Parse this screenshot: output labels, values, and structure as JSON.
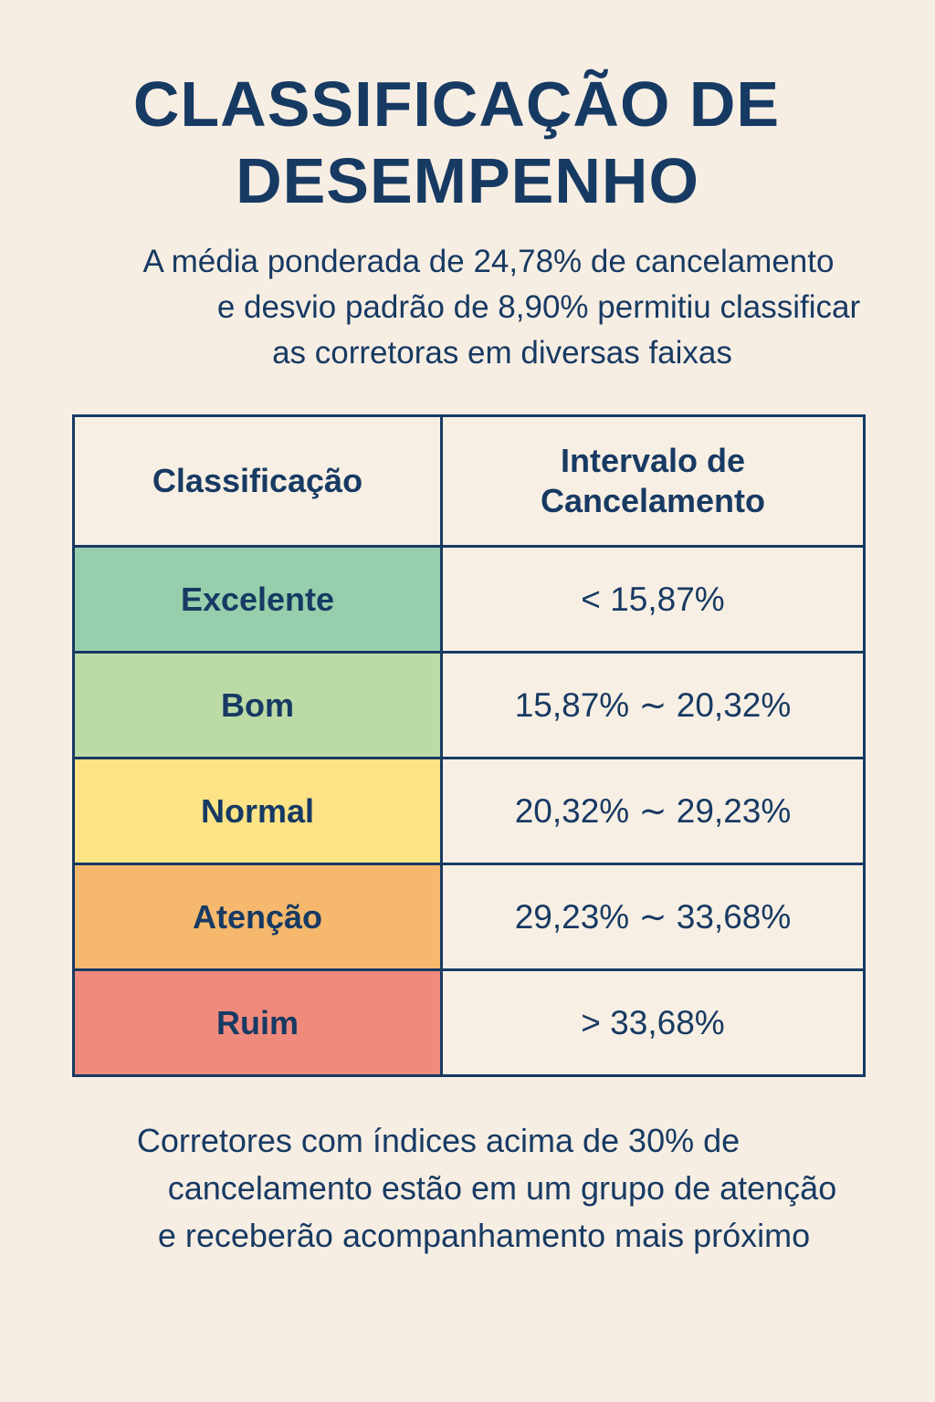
{
  "title": {
    "line1": "CLASSIFICAÇÃO DE",
    "line2": "DESEMPENHO"
  },
  "subtitle": {
    "line1": "A média ponderada de 24,78% de cancelamento",
    "line2": "e desvio padrão de 8,90% permitiu classificar",
    "line3": "as corretoras em diversas faixas"
  },
  "table": {
    "headers": {
      "classification": "Classificação",
      "interval_line1": "Intervalo de",
      "interval_line2": "Cancelamento"
    },
    "rows": [
      {
        "label": "Excelente",
        "range": "< 15,87%",
        "color": "#97cfac"
      },
      {
        "label": "Bom",
        "range": "15,87% ∼ 20,32%",
        "color": "#bcdaa6"
      },
      {
        "label": "Normal",
        "range": "20,32% ∼ 29,23%",
        "color": "#fde385"
      },
      {
        "label": "Atenção",
        "range": "29,23% ∼ 33,68%",
        "color": "#f5b86c"
      },
      {
        "label": "Ruim",
        "range": "> 33,68%",
        "color": "#f08a7c"
      }
    ]
  },
  "footer": {
    "line1": "Corretores com índices acima de 30% de",
    "line2": "cancelamento estão em um grupo de atenção",
    "line3": "e receberão acompanhamento mais próximo"
  },
  "colors": {
    "background": "#f7eee3",
    "text": "#173a63",
    "border": "#173a63"
  }
}
